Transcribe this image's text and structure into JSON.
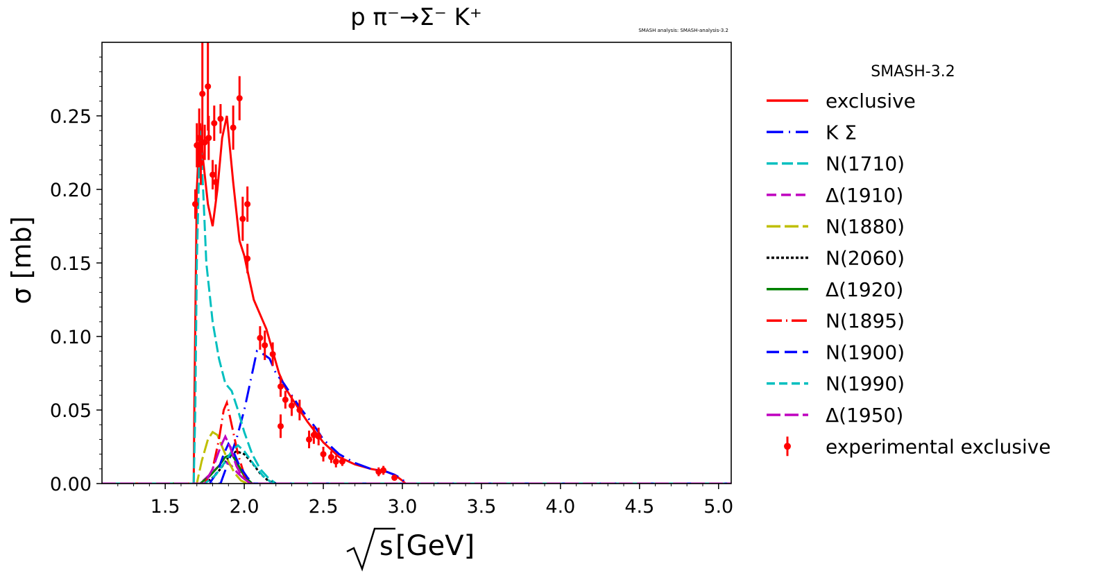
{
  "chart_data": {
    "type": "line",
    "title": "p π⁻→Σ⁻ K⁺",
    "subtitle": "SMASH analysis: SMASH-analysis-3.2",
    "xlabel_root": "s",
    "xlabel_unit": "[GeV]",
    "ylabel": "σ [mb]",
    "xlim": [
      1.1,
      5.08
    ],
    "ylim": [
      0.0,
      0.3
    ],
    "x_ticks": [
      "1.5",
      "2.0",
      "2.5",
      "3.0",
      "3.5",
      "4.0",
      "4.5",
      "5.0"
    ],
    "x_tick_values": [
      1.5,
      2.0,
      2.5,
      3.0,
      3.5,
      4.0,
      4.5,
      5.0
    ],
    "y_ticks": [
      "0.00",
      "0.05",
      "0.10",
      "0.15",
      "0.20",
      "0.25"
    ],
    "y_tick_values": [
      0.0,
      0.05,
      0.1,
      0.15,
      0.2,
      0.25
    ],
    "legend_title": "SMASH-3.2",
    "legend_position": "outside-right",
    "series": [
      {
        "name": "exclusive",
        "color": "#ff0000",
        "dash": "solid",
        "x": [
          1.1,
          1.68,
          1.685,
          1.7,
          1.72,
          1.74,
          1.77,
          1.8,
          1.83,
          1.86,
          1.89,
          1.93,
          1.97,
          2.0,
          2.03,
          2.06,
          2.1,
          2.14,
          2.18,
          2.22,
          2.26,
          2.3,
          2.35,
          2.4,
          2.45,
          2.5,
          2.6,
          2.7,
          2.8,
          2.9,
          2.95,
          3.0,
          3.02,
          5.08
        ],
        "y": [
          0.0,
          0.0,
          0.06,
          0.2,
          0.245,
          0.22,
          0.19,
          0.175,
          0.2,
          0.235,
          0.25,
          0.205,
          0.165,
          0.155,
          0.14,
          0.125,
          0.115,
          0.105,
          0.09,
          0.075,
          0.065,
          0.058,
          0.05,
          0.042,
          0.035,
          0.028,
          0.018,
          0.013,
          0.01,
          0.008,
          0.006,
          0.002,
          0.0,
          0.0
        ]
      },
      {
        "name": "K Σ",
        "color": "#0000ff",
        "dash": "24 8 2 8",
        "x": [
          1.1,
          1.85,
          1.9,
          1.95,
          2.0,
          2.05,
          2.08,
          2.12,
          2.16,
          2.2,
          2.25,
          2.3,
          2.35,
          2.4,
          2.45,
          2.5,
          2.6,
          2.7,
          2.8,
          2.9,
          2.95,
          3.0,
          3.02,
          5.08
        ],
        "y": [
          0.0,
          0.0,
          0.015,
          0.03,
          0.05,
          0.075,
          0.09,
          0.088,
          0.085,
          0.075,
          0.068,
          0.06,
          0.052,
          0.045,
          0.038,
          0.03,
          0.02,
          0.014,
          0.01,
          0.008,
          0.006,
          0.003,
          0.0,
          0.0
        ]
      },
      {
        "name": "N(1710)",
        "color": "#00bfbf",
        "dash": "16 6",
        "x": [
          1.1,
          1.68,
          1.69,
          1.7,
          1.72,
          1.74,
          1.76,
          1.8,
          1.84,
          1.88,
          1.92,
          1.96,
          2.0,
          2.05,
          2.1,
          2.15,
          2.2,
          5.08
        ],
        "y": [
          0.0,
          0.0,
          0.05,
          0.15,
          0.24,
          0.2,
          0.15,
          0.11,
          0.085,
          0.068,
          0.063,
          0.05,
          0.035,
          0.02,
          0.01,
          0.004,
          0.0,
          0.0
        ]
      },
      {
        "name": "Δ(1910)",
        "color": "#bf00bf",
        "dash": "14 7",
        "x": [
          1.1,
          1.72,
          1.78,
          1.84,
          1.88,
          1.92,
          1.96,
          2.0,
          2.05,
          5.08
        ],
        "y": [
          0.0,
          0.0,
          0.006,
          0.012,
          0.015,
          0.012,
          0.007,
          0.003,
          0.0,
          0.0
        ]
      },
      {
        "name": "N(1880)",
        "color": "#bfbf00",
        "dash": "20 6",
        "x": [
          1.1,
          1.7,
          1.73,
          1.77,
          1.8,
          1.83,
          1.86,
          1.9,
          1.94,
          1.98,
          2.02,
          5.08
        ],
        "y": [
          0.0,
          0.0,
          0.015,
          0.03,
          0.035,
          0.033,
          0.025,
          0.015,
          0.007,
          0.002,
          0.0,
          0.0
        ]
      },
      {
        "name": "N(2060)",
        "color": "#000000",
        "dash": "4 3",
        "x": [
          1.1,
          1.75,
          1.8,
          1.85,
          1.9,
          1.95,
          2.0,
          2.05,
          2.1,
          2.15,
          2.2,
          5.08
        ],
        "y": [
          0.0,
          0.0,
          0.004,
          0.01,
          0.018,
          0.022,
          0.02,
          0.014,
          0.007,
          0.002,
          0.0,
          0.0
        ]
      },
      {
        "name": "Δ(1920)",
        "color": "#008000",
        "dash": "solid",
        "x": [
          1.1,
          1.72,
          1.78,
          1.84,
          1.88,
          1.92,
          1.96,
          2.0,
          2.05,
          5.08
        ],
        "y": [
          0.0,
          0.0,
          0.005,
          0.012,
          0.018,
          0.02,
          0.013,
          0.005,
          0.0,
          0.0
        ]
      },
      {
        "name": "N(1895)",
        "color": "#ff0000",
        "dash": "22 6 2 6",
        "x": [
          1.1,
          1.75,
          1.8,
          1.84,
          1.87,
          1.89,
          1.92,
          1.96,
          2.0,
          2.03,
          5.08
        ],
        "y": [
          0.0,
          0.0,
          0.01,
          0.03,
          0.05,
          0.055,
          0.04,
          0.02,
          0.006,
          0.0,
          0.0
        ]
      },
      {
        "name": "N(1900)",
        "color": "#0000ff",
        "dash": "18 8",
        "x": [
          1.1,
          1.78,
          1.83,
          1.87,
          1.9,
          1.93,
          1.97,
          2.02,
          2.06,
          5.08
        ],
        "y": [
          0.0,
          0.0,
          0.008,
          0.02,
          0.027,
          0.022,
          0.012,
          0.004,
          0.0,
          0.0
        ]
      },
      {
        "name": "N(1990)",
        "color": "#00bfbf",
        "dash": "12 6",
        "x": [
          1.1,
          1.75,
          1.82,
          1.88,
          1.92,
          1.96,
          2.0,
          2.06,
          2.12,
          2.18,
          5.08
        ],
        "y": [
          0.0,
          0.0,
          0.006,
          0.015,
          0.022,
          0.026,
          0.022,
          0.013,
          0.005,
          0.0,
          0.0
        ]
      },
      {
        "name": "Δ(1950)",
        "color": "#bf00bf",
        "dash": "20 6",
        "x": [
          1.1,
          1.75,
          1.8,
          1.85,
          1.88,
          1.91,
          1.95,
          1.99,
          2.04,
          5.08
        ],
        "y": [
          0.0,
          0.0,
          0.01,
          0.025,
          0.032,
          0.025,
          0.012,
          0.004,
          0.0,
          0.0
        ]
      }
    ],
    "experimental": {
      "name": "experimental exclusive",
      "color": "#ff0000",
      "points": [
        {
          "x": 1.69,
          "y": 0.19,
          "err": 0.01
        },
        {
          "x": 1.7,
          "y": 0.23,
          "err": 0.015
        },
        {
          "x": 1.715,
          "y": 0.235,
          "err": 0.02
        },
        {
          "x": 1.725,
          "y": 0.218,
          "err": 0.015
        },
        {
          "x": 1.735,
          "y": 0.265,
          "err": 0.04
        },
        {
          "x": 1.75,
          "y": 0.232,
          "err": 0.012
        },
        {
          "x": 1.77,
          "y": 0.27,
          "err": 0.03
        },
        {
          "x": 1.775,
          "y": 0.235,
          "err": 0.015
        },
        {
          "x": 1.8,
          "y": 0.21,
          "err": 0.01
        },
        {
          "x": 1.81,
          "y": 0.245,
          "err": 0.012
        },
        {
          "x": 1.82,
          "y": 0.205,
          "err": 0.012
        },
        {
          "x": 1.85,
          "y": 0.248,
          "err": 0.01
        },
        {
          "x": 1.93,
          "y": 0.242,
          "err": 0.015
        },
        {
          "x": 1.97,
          "y": 0.262,
          "err": 0.015
        },
        {
          "x": 1.99,
          "y": 0.18,
          "err": 0.015
        },
        {
          "x": 2.02,
          "y": 0.19,
          "err": 0.012
        },
        {
          "x": 2.02,
          "y": 0.153,
          "err": 0.01
        },
        {
          "x": 2.1,
          "y": 0.099,
          "err": 0.008
        },
        {
          "x": 2.13,
          "y": 0.094,
          "err": 0.01
        },
        {
          "x": 2.18,
          "y": 0.088,
          "err": 0.008
        },
        {
          "x": 2.23,
          "y": 0.066,
          "err": 0.007
        },
        {
          "x": 2.23,
          "y": 0.039,
          "err": 0.008
        },
        {
          "x": 2.26,
          "y": 0.057,
          "err": 0.006
        },
        {
          "x": 2.3,
          "y": 0.053,
          "err": 0.007
        },
        {
          "x": 2.35,
          "y": 0.05,
          "err": 0.007
        },
        {
          "x": 2.41,
          "y": 0.03,
          "err": 0.006
        },
        {
          "x": 2.44,
          "y": 0.033,
          "err": 0.006
        },
        {
          "x": 2.47,
          "y": 0.032,
          "err": 0.006
        },
        {
          "x": 2.5,
          "y": 0.02,
          "err": 0.005
        },
        {
          "x": 2.55,
          "y": 0.018,
          "err": 0.004
        },
        {
          "x": 2.58,
          "y": 0.015,
          "err": 0.004
        },
        {
          "x": 2.62,
          "y": 0.015,
          "err": 0.003
        },
        {
          "x": 2.85,
          "y": 0.008,
          "err": 0.003
        },
        {
          "x": 2.88,
          "y": 0.009,
          "err": 0.003
        },
        {
          "x": 2.95,
          "y": 0.004,
          "err": 0.002
        }
      ]
    }
  }
}
